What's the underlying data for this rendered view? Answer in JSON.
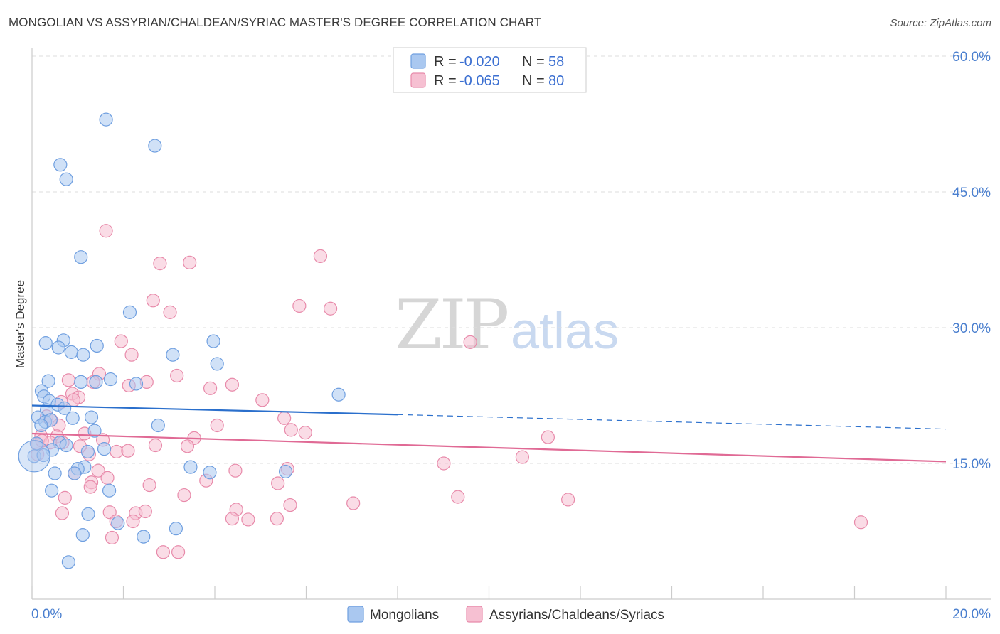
{
  "title": "MONGOLIAN VS ASSYRIAN/CHALDEAN/SYRIAC MASTER'S DEGREE CORRELATION CHART",
  "source": "Source: ZipAtlas.com",
  "watermark": {
    "zip": "ZIP",
    "atlas": "atlas"
  },
  "colors": {
    "blue_fill": "#aac8f0",
    "blue_stroke": "#6f9fe0",
    "blue_line": "#2a6fcc",
    "pink_fill": "#f6c0d2",
    "pink_stroke": "#e88aaa",
    "pink_line": "#e06a95",
    "grid": "#dddddd",
    "tick_text": "#4a7fcf"
  },
  "legend": {
    "rows": [
      {
        "r_label": "R =",
        "r_value": "-0.020",
        "n_label": "N =",
        "n_value": "58",
        "series": "Mongolians"
      },
      {
        "r_label": "R =",
        "r_value": "-0.065",
        "n_label": "N =",
        "n_value": "80",
        "series": "Assyrians/Chaldeans/Syriacs"
      }
    ]
  },
  "chart_data": {
    "type": "scatter",
    "title": "MONGOLIAN VS ASSYRIAN/CHALDEAN/SYRIAC MASTER'S DEGREE CORRELATION CHART",
    "xlabel": "",
    "ylabel": "Master's Degree",
    "xlim": [
      0,
      20
    ],
    "ylim": [
      0,
      60
    ],
    "x_tick_labels": [
      "0.0%",
      "20.0%"
    ],
    "y_tick_values": [
      15,
      30,
      45,
      60
    ],
    "y_tick_labels": [
      "15.0%",
      "30.0%",
      "45.0%",
      "60.0%"
    ],
    "legend_position": "bottom-center",
    "series": [
      {
        "name": "Mongolians",
        "color": "#aac8f0",
        "trend": {
          "x0": 0,
          "y0": 21.4,
          "x1": 8.0,
          "y1": 20.4,
          "dashed_to_x": 20.0,
          "dashed_to_y": 18.8
        },
        "points": [
          [
            1.62,
            53.0
          ],
          [
            2.69,
            50.1
          ],
          [
            0.62,
            48.0
          ],
          [
            0.75,
            46.4
          ],
          [
            1.07,
            37.8
          ],
          [
            2.14,
            31.7
          ],
          [
            0.3,
            28.3
          ],
          [
            0.69,
            28.6
          ],
          [
            0.58,
            27.8
          ],
          [
            0.86,
            27.3
          ],
          [
            1.12,
            27.0
          ],
          [
            1.42,
            28.0
          ],
          [
            3.08,
            27.0
          ],
          [
            3.97,
            28.5
          ],
          [
            4.05,
            26.0
          ],
          [
            0.36,
            24.1
          ],
          [
            1.07,
            24.0
          ],
          [
            1.4,
            24.0
          ],
          [
            1.72,
            24.3
          ],
          [
            2.28,
            23.8
          ],
          [
            6.71,
            22.6
          ],
          [
            0.21,
            23.0
          ],
          [
            0.26,
            22.4
          ],
          [
            0.38,
            21.9
          ],
          [
            0.56,
            21.5
          ],
          [
            0.71,
            21.1
          ],
          [
            0.32,
            20.9
          ],
          [
            0.13,
            20.1
          ],
          [
            0.29,
            19.6
          ],
          [
            0.41,
            19.8
          ],
          [
            0.89,
            20.0
          ],
          [
            1.3,
            20.1
          ],
          [
            0.2,
            19.2
          ],
          [
            1.37,
            18.6
          ],
          [
            2.76,
            19.2
          ],
          [
            0.1,
            17.2
          ],
          [
            0.61,
            17.3
          ],
          [
            0.75,
            17.0
          ],
          [
            0.44,
            16.5
          ],
          [
            1.22,
            16.3
          ],
          [
            1.58,
            16.6
          ],
          [
            0.05,
            15.8
          ],
          [
            1.15,
            14.6
          ],
          [
            3.47,
            14.6
          ],
          [
            1.0,
            14.4
          ],
          [
            0.5,
            13.9
          ],
          [
            0.93,
            13.9
          ],
          [
            3.89,
            14.0
          ],
          [
            5.55,
            14.1
          ],
          [
            0.43,
            12.0
          ],
          [
            1.69,
            12.0
          ],
          [
            1.23,
            9.4
          ],
          [
            1.88,
            8.4
          ],
          [
            3.15,
            7.8
          ],
          [
            1.11,
            7.1
          ],
          [
            2.44,
            6.9
          ],
          [
            0.8,
            4.1
          ],
          [
            0.25,
            15.9
          ]
        ]
      },
      {
        "name": "Assyrians/Chaldeans/Syriacs",
        "color": "#f6c0d2",
        "trend": {
          "x0": 0,
          "y0": 18.3,
          "x1": 20.0,
          "y1": 15.2
        },
        "points": [
          [
            1.62,
            40.7
          ],
          [
            6.31,
            37.9
          ],
          [
            2.8,
            37.1
          ],
          [
            3.45,
            37.2
          ],
          [
            2.65,
            33.0
          ],
          [
            5.85,
            32.4
          ],
          [
            6.53,
            32.1
          ],
          [
            3.02,
            31.7
          ],
          [
            9.59,
            28.4
          ],
          [
            1.95,
            28.5
          ],
          [
            2.18,
            27.0
          ],
          [
            3.17,
            24.7
          ],
          [
            1.47,
            24.9
          ],
          [
            0.8,
            24.2
          ],
          [
            2.12,
            23.6
          ],
          [
            2.51,
            24.0
          ],
          [
            3.9,
            23.3
          ],
          [
            4.38,
            23.7
          ],
          [
            0.88,
            22.7
          ],
          [
            1.02,
            22.3
          ],
          [
            1.34,
            24.0
          ],
          [
            0.91,
            22.0
          ],
          [
            0.64,
            21.8
          ],
          [
            5.04,
            22.0
          ],
          [
            0.32,
            20.2
          ],
          [
            0.42,
            19.8
          ],
          [
            5.52,
            20.0
          ],
          [
            0.59,
            19.2
          ],
          [
            4.05,
            19.2
          ],
          [
            5.67,
            18.7
          ],
          [
            0.55,
            18.0
          ],
          [
            1.15,
            18.3
          ],
          [
            5.98,
            18.4
          ],
          [
            3.55,
            17.8
          ],
          [
            0.2,
            18.0
          ],
          [
            1.55,
            17.6
          ],
          [
            11.29,
            17.9
          ],
          [
            0.4,
            17.3
          ],
          [
            0.67,
            17.3
          ],
          [
            2.7,
            17.0
          ],
          [
            3.4,
            16.9
          ],
          [
            0.12,
            17.1
          ],
          [
            1.05,
            16.9
          ],
          [
            1.85,
            16.3
          ],
          [
            2.1,
            16.4
          ],
          [
            1.25,
            16.0
          ],
          [
            10.73,
            15.7
          ],
          [
            9.01,
            15.0
          ],
          [
            0.93,
            13.9
          ],
          [
            1.45,
            14.2
          ],
          [
            3.81,
            13.1
          ],
          [
            4.45,
            14.2
          ],
          [
            5.59,
            14.4
          ],
          [
            1.3,
            12.9
          ],
          [
            1.65,
            13.4
          ],
          [
            2.57,
            12.6
          ],
          [
            1.28,
            12.4
          ],
          [
            5.38,
            12.8
          ],
          [
            0.72,
            11.2
          ],
          [
            3.33,
            11.5
          ],
          [
            9.32,
            11.3
          ],
          [
            11.73,
            11.0
          ],
          [
            0.66,
            9.5
          ],
          [
            1.7,
            9.6
          ],
          [
            2.27,
            9.5
          ],
          [
            2.48,
            9.7
          ],
          [
            4.47,
            9.9
          ],
          [
            7.03,
            10.6
          ],
          [
            5.65,
            10.4
          ],
          [
            4.38,
            8.9
          ],
          [
            4.73,
            8.8
          ],
          [
            5.36,
            8.9
          ],
          [
            1.84,
            8.6
          ],
          [
            2.21,
            8.6
          ],
          [
            1.75,
            6.8
          ],
          [
            2.87,
            5.2
          ],
          [
            3.2,
            5.2
          ],
          [
            18.14,
            8.5
          ],
          [
            0.12,
            16.0
          ],
          [
            0.22,
            17.5
          ]
        ]
      }
    ]
  }
}
